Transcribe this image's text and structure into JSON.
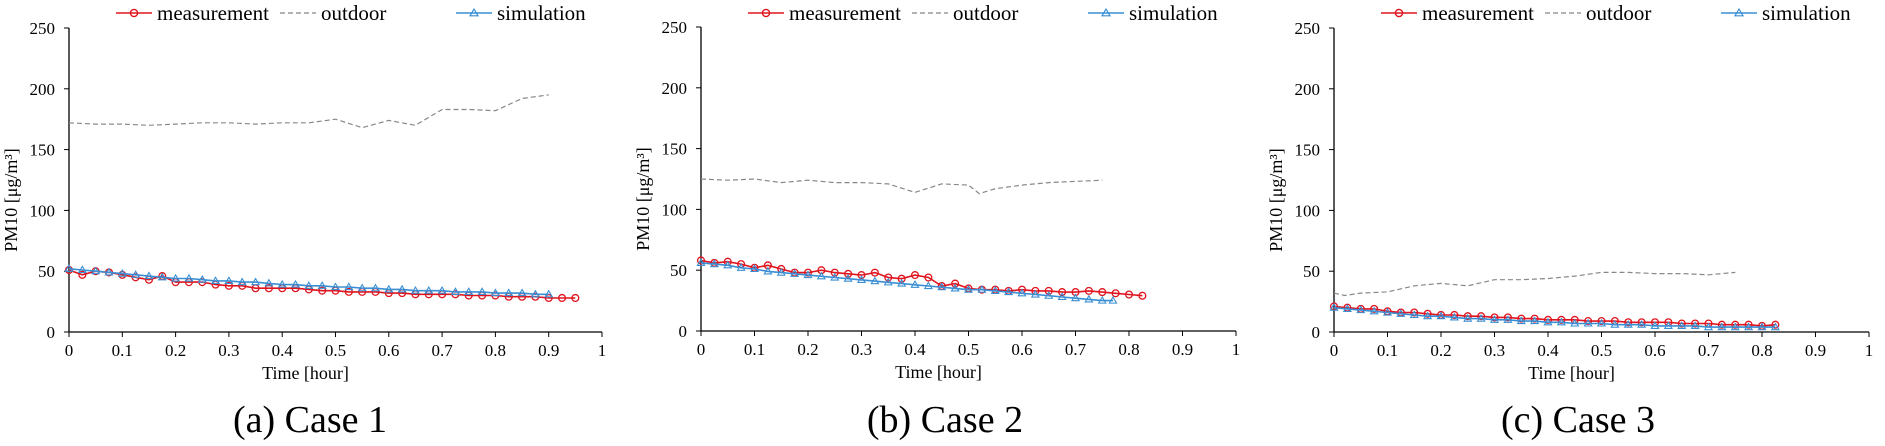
{
  "chart_data": [
    {
      "type": "line",
      "caption": "(a) Case 1",
      "xlabel": "Time [hour]",
      "ylabel": "PM10 [μg/m³]",
      "xlim": [
        0,
        1
      ],
      "ylim": [
        0,
        250
      ],
      "xticks": [
        "0",
        "0.1",
        "0.2",
        "0.3",
        "0.4",
        "0.5",
        "0.6",
        "0.7",
        "0.8",
        "0.9",
        "1"
      ],
      "yticks": [
        "0",
        "50",
        "100",
        "150",
        "200",
        "250"
      ],
      "legend": "top",
      "grid": false,
      "series": [
        {
          "name": "measurement",
          "color": "#e0141e",
          "marker": "circle",
          "dash": "solid",
          "x": [
            0,
            0.025,
            0.05,
            0.075,
            0.1,
            0.125,
            0.15,
            0.175,
            0.2,
            0.225,
            0.25,
            0.275,
            0.3,
            0.325,
            0.35,
            0.375,
            0.4,
            0.425,
            0.45,
            0.475,
            0.5,
            0.525,
            0.55,
            0.575,
            0.6,
            0.625,
            0.65,
            0.675,
            0.7,
            0.725,
            0.75,
            0.775,
            0.8,
            0.825,
            0.85,
            0.875,
            0.9,
            0.925,
            0.95
          ],
          "y": [
            51,
            47,
            50,
            49,
            47,
            45,
            43,
            46,
            41,
            41,
            41,
            39,
            38,
            38,
            36,
            36,
            36,
            36,
            35,
            34,
            34,
            33,
            33,
            33,
            32,
            32,
            31,
            31,
            31,
            31,
            30,
            30,
            30,
            29,
            29,
            29,
            28,
            28,
            28
          ]
        },
        {
          "name": "outdoor",
          "color": "#888888",
          "marker": "none",
          "dash": "dashed",
          "x": [
            0,
            0.05,
            0.1,
            0.15,
            0.2,
            0.25,
            0.3,
            0.35,
            0.4,
            0.45,
            0.5,
            0.55,
            0.6,
            0.65,
            0.7,
            0.75,
            0.8,
            0.85,
            0.9
          ],
          "y": [
            172,
            171,
            171,
            170,
            171,
            172,
            172,
            171,
            172,
            172,
            175,
            168,
            174,
            170,
            183,
            183,
            182,
            192,
            195
          ]
        },
        {
          "name": "simulation",
          "color": "#3a8fd4",
          "marker": "triangle",
          "dash": "solid",
          "x": [
            0,
            0.025,
            0.05,
            0.075,
            0.1,
            0.125,
            0.15,
            0.175,
            0.2,
            0.225,
            0.25,
            0.275,
            0.3,
            0.325,
            0.35,
            0.375,
            0.4,
            0.425,
            0.45,
            0.475,
            0.5,
            0.525,
            0.55,
            0.575,
            0.6,
            0.625,
            0.65,
            0.675,
            0.7,
            0.725,
            0.75,
            0.775,
            0.8,
            0.825,
            0.85,
            0.875,
            0.9
          ],
          "y": [
            52,
            51,
            50,
            49,
            48,
            47,
            46,
            45,
            44,
            44,
            43,
            42,
            42,
            41,
            41,
            40,
            39,
            39,
            38,
            38,
            37,
            37,
            36,
            36,
            35,
            35,
            34,
            34,
            34,
            33,
            33,
            33,
            32,
            32,
            32,
            31,
            31
          ]
        }
      ]
    },
    {
      "type": "line",
      "caption": "(b) Case 2",
      "xlabel": "Time [hour]",
      "ylabel": "PM10 [μg/m³]",
      "xlim": [
        0,
        1
      ],
      "ylim": [
        0,
        250
      ],
      "xticks": [
        "0",
        "0.1",
        "0.2",
        "0.3",
        "0.4",
        "0.5",
        "0.6",
        "0.7",
        "0.8",
        "0.9",
        "1"
      ],
      "yticks": [
        "0",
        "50",
        "100",
        "150",
        "200",
        "250"
      ],
      "legend": "top",
      "grid": false,
      "series": [
        {
          "name": "measurement",
          "color": "#e0141e",
          "marker": "circle",
          "dash": "solid",
          "x": [
            0,
            0.025,
            0.05,
            0.075,
            0.1,
            0.125,
            0.15,
            0.175,
            0.2,
            0.225,
            0.25,
            0.275,
            0.3,
            0.325,
            0.35,
            0.375,
            0.4,
            0.425,
            0.45,
            0.475,
            0.5,
            0.525,
            0.55,
            0.575,
            0.6,
            0.625,
            0.65,
            0.675,
            0.7,
            0.725,
            0.75,
            0.775,
            0.8,
            0.825
          ],
          "y": [
            58,
            56,
            57,
            55,
            52,
            54,
            51,
            48,
            48,
            50,
            48,
            47,
            46,
            48,
            44,
            43,
            46,
            44,
            37,
            39,
            35,
            34,
            34,
            33,
            34,
            33,
            33,
            32,
            32,
            33,
            32,
            31,
            30,
            29
          ]
        },
        {
          "name": "outdoor",
          "color": "#888888",
          "marker": "none",
          "dash": "dashed",
          "x": [
            0,
            0.05,
            0.1,
            0.15,
            0.2,
            0.25,
            0.3,
            0.35,
            0.4,
            0.45,
            0.5,
            0.52,
            0.55,
            0.6,
            0.65,
            0.7,
            0.75
          ],
          "y": [
            125,
            124,
            125,
            122,
            124,
            122,
            122,
            121,
            114,
            121,
            120,
            113,
            117,
            120,
            122,
            123,
            124
          ]
        },
        {
          "name": "simulation",
          "color": "#3a8fd4",
          "marker": "triangle",
          "dash": "solid",
          "x": [
            0,
            0.025,
            0.05,
            0.075,
            0.1,
            0.125,
            0.15,
            0.175,
            0.2,
            0.225,
            0.25,
            0.275,
            0.3,
            0.325,
            0.35,
            0.375,
            0.4,
            0.425,
            0.45,
            0.475,
            0.5,
            0.525,
            0.55,
            0.575,
            0.6,
            0.625,
            0.65,
            0.675,
            0.7,
            0.725,
            0.75,
            0.77
          ],
          "y": [
            56,
            55,
            54,
            52,
            51,
            49,
            48,
            47,
            46,
            45,
            44,
            43,
            42,
            41,
            40,
            39,
            38,
            37,
            36,
            35,
            34,
            34,
            33,
            32,
            31,
            30,
            29,
            28,
            27,
            26,
            25,
            25
          ]
        }
      ]
    },
    {
      "type": "line",
      "caption": "(c) Case 3",
      "xlabel": "Time [hour]",
      "ylabel": "PM10 [μg/m³]",
      "xlim": [
        0,
        1
      ],
      "ylim": [
        0,
        250
      ],
      "xticks": [
        "0",
        "0.1",
        "0.2",
        "0.3",
        "0.4",
        "0.5",
        "0.6",
        "0.7",
        "0.8",
        "0.9",
        "1"
      ],
      "yticks": [
        "0",
        "50",
        "100",
        "150",
        "200",
        "250"
      ],
      "legend": "top",
      "grid": false,
      "series": [
        {
          "name": "measurement",
          "color": "#e0141e",
          "marker": "circle",
          "dash": "solid",
          "x": [
            0,
            0.025,
            0.05,
            0.075,
            0.1,
            0.125,
            0.15,
            0.175,
            0.2,
            0.225,
            0.25,
            0.275,
            0.3,
            0.325,
            0.35,
            0.375,
            0.4,
            0.425,
            0.45,
            0.475,
            0.5,
            0.525,
            0.55,
            0.575,
            0.6,
            0.625,
            0.65,
            0.675,
            0.7,
            0.725,
            0.75,
            0.775,
            0.8,
            0.825
          ],
          "y": [
            21,
            20,
            19,
            19,
            17,
            16,
            16,
            15,
            14,
            14,
            13,
            13,
            12,
            12,
            11,
            11,
            10,
            10,
            10,
            9,
            9,
            9,
            8,
            8,
            8,
            8,
            7,
            7,
            7,
            6,
            6,
            6,
            5,
            6
          ]
        },
        {
          "name": "outdoor",
          "color": "#888888",
          "marker": "none",
          "dash": "dashed",
          "x": [
            0,
            0.02,
            0.05,
            0.1,
            0.15,
            0.2,
            0.25,
            0.3,
            0.35,
            0.4,
            0.45,
            0.5,
            0.55,
            0.6,
            0.65,
            0.7,
            0.75
          ],
          "y": [
            32,
            30,
            32,
            33,
            38,
            40,
            38,
            43,
            43,
            44,
            46,
            49,
            49,
            48,
            48,
            47,
            49
          ]
        },
        {
          "name": "simulation",
          "color": "#3a8fd4",
          "marker": "triangle",
          "dash": "solid",
          "x": [
            0,
            0.025,
            0.05,
            0.075,
            0.1,
            0.125,
            0.15,
            0.175,
            0.2,
            0.225,
            0.25,
            0.275,
            0.3,
            0.325,
            0.35,
            0.375,
            0.4,
            0.425,
            0.45,
            0.475,
            0.5,
            0.525,
            0.55,
            0.575,
            0.6,
            0.625,
            0.65,
            0.675,
            0.7,
            0.725,
            0.75,
            0.775,
            0.8,
            0.825
          ],
          "y": [
            20,
            19,
            18,
            17,
            16,
            15,
            14,
            13,
            13,
            12,
            11,
            11,
            10,
            10,
            9,
            9,
            8,
            8,
            7,
            7,
            7,
            6,
            6,
            6,
            5,
            5,
            5,
            5,
            4,
            4,
            4,
            4,
            4,
            4
          ]
        }
      ]
    }
  ]
}
